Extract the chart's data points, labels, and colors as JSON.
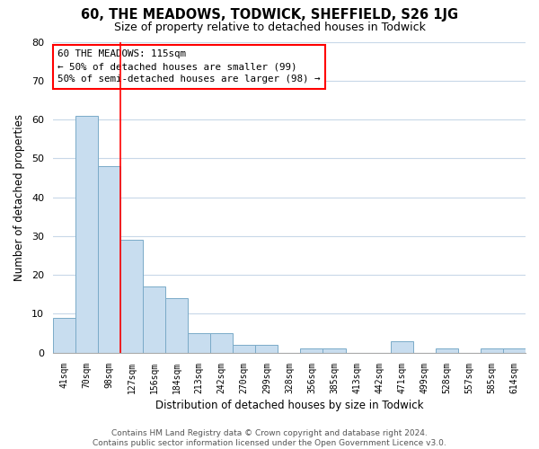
{
  "title": "60, THE MEADOWS, TODWICK, SHEFFIELD, S26 1JG",
  "subtitle": "Size of property relative to detached houses in Todwick",
  "xlabel": "Distribution of detached houses by size in Todwick",
  "ylabel": "Number of detached properties",
  "bar_color": "#c8ddef",
  "bar_edge_color": "#7aaac8",
  "background_color": "#ffffff",
  "grid_color": "#c8d8e8",
  "categories": [
    "41sqm",
    "70sqm",
    "98sqm",
    "127sqm",
    "156sqm",
    "184sqm",
    "213sqm",
    "242sqm",
    "270sqm",
    "299sqm",
    "328sqm",
    "356sqm",
    "385sqm",
    "413sqm",
    "442sqm",
    "471sqm",
    "499sqm",
    "528sqm",
    "557sqm",
    "585sqm",
    "614sqm"
  ],
  "values": [
    9,
    61,
    48,
    29,
    17,
    14,
    5,
    5,
    2,
    2,
    0,
    1,
    1,
    0,
    0,
    3,
    0,
    1,
    0,
    1,
    1
  ],
  "ylim": [
    0,
    80
  ],
  "yticks": [
    0,
    10,
    20,
    30,
    40,
    50,
    60,
    70,
    80
  ],
  "redline_x": 2.5,
  "annotation_title": "60 THE MEADOWS: 115sqm",
  "annotation_line1": "← 50% of detached houses are smaller (99)",
  "annotation_line2": "50% of semi-detached houses are larger (98) →",
  "footer_line1": "Contains HM Land Registry data © Crown copyright and database right 2024.",
  "footer_line2": "Contains public sector information licensed under the Open Government Licence v3.0."
}
